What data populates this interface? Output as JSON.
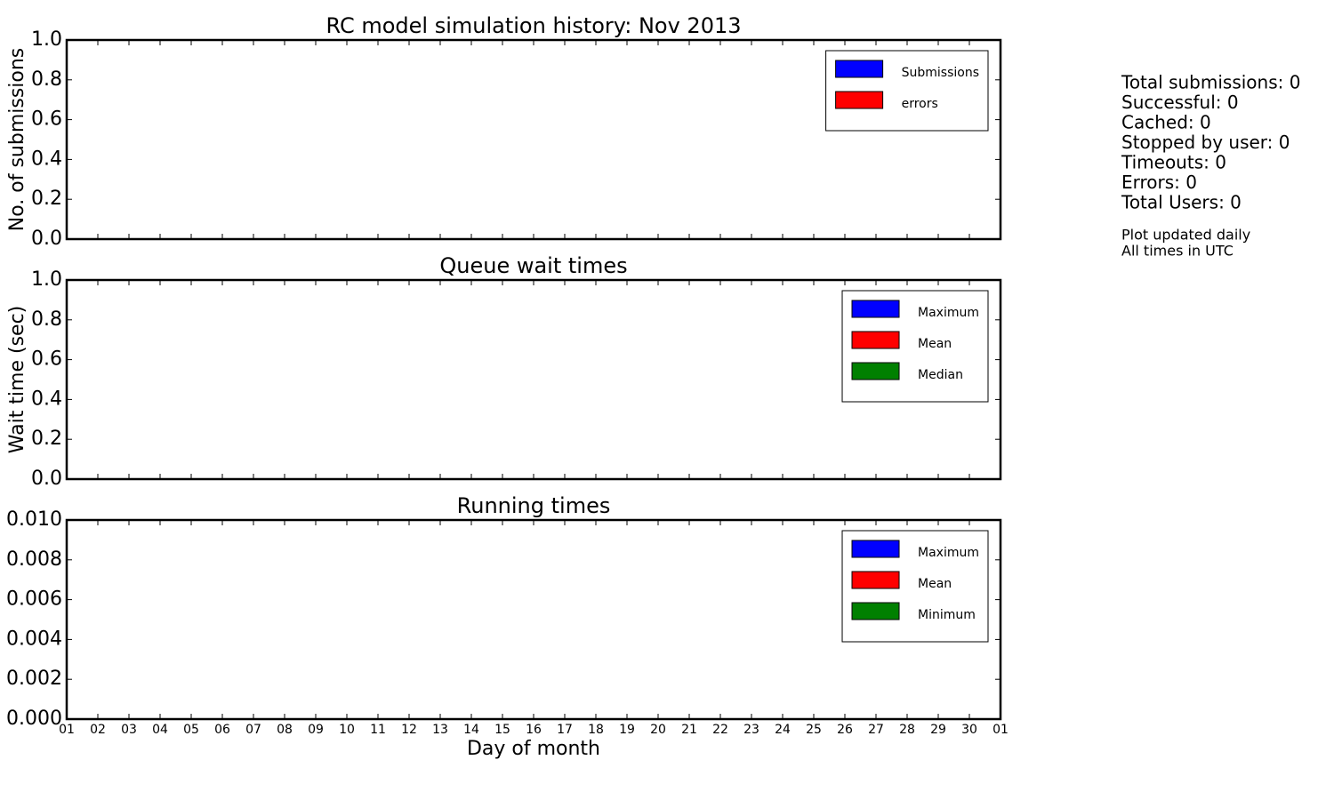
{
  "chart_data": [
    {
      "type": "bar",
      "title": "RC model simulation history: Nov 2013",
      "ylabel": "No. of submissions",
      "series": [
        {
          "name": "Submissions",
          "color": "#0000ff"
        },
        {
          "name": "errors",
          "color": "#ff0000"
        }
      ],
      "ylim": [
        0,
        1
      ],
      "yticks": [
        {
          "value": 0,
          "label": "0.0"
        },
        0.2,
        0.4,
        0.6,
        0.8,
        {
          "value": 1,
          "label": "1.0"
        }
      ],
      "legend": "upper right"
    },
    {
      "type": "bar",
      "title": "Queue wait times",
      "ylabel": "Wait time (sec)",
      "series": [
        {
          "name": "Maximum",
          "color": "#0000ff"
        },
        {
          "name": "Mean",
          "color": "#ff0000"
        },
        {
          "name": "Median",
          "color": "#008000"
        }
      ],
      "ylim": [
        0,
        1
      ],
      "yticks": [
        {
          "value": 0,
          "label": "0.0"
        },
        0.2,
        0.4,
        0.6,
        0.8,
        {
          "value": 1,
          "label": "1.0"
        }
      ],
      "legend": "upper right"
    },
    {
      "type": "bar",
      "title": "Running times",
      "xlabel": "Day of month",
      "series": [
        {
          "name": "Maximum",
          "color": "#0000ff"
        },
        {
          "name": "Mean",
          "color": "#ff0000"
        },
        {
          "name": "Minimum",
          "color": "#008000"
        }
      ],
      "ylim": [
        0,
        0.01
      ],
      "yticks": [
        {
          "value": 0,
          "label": "0.000"
        },
        {
          "value": 0.002,
          "label": "0.002"
        },
        {
          "value": 0.004,
          "label": "0.004"
        },
        {
          "value": 0.006,
          "label": "0.006"
        },
        {
          "value": 0.008,
          "label": "0.008"
        },
        {
          "value": 0.01,
          "label": "0.010"
        }
      ],
      "xlim": [
        1,
        31
      ],
      "xticks": [
        {
          "value": 1,
          "label": "01"
        },
        {
          "value": 2,
          "label": "02"
        },
        {
          "value": 3,
          "label": "03"
        },
        {
          "value": 4,
          "label": "04"
        },
        {
          "value": 5,
          "label": "05"
        },
        {
          "value": 6,
          "label": "06"
        },
        {
          "value": 7,
          "label": "07"
        },
        {
          "value": 8,
          "label": "08"
        },
        {
          "value": 9,
          "label": "09"
        },
        10,
        11,
        12,
        13,
        14,
        15,
        16,
        17,
        18,
        19,
        20,
        21,
        22,
        23,
        24,
        25,
        26,
        27,
        28,
        29,
        30,
        {
          "value": 31,
          "label": "01"
        }
      ],
      "legend": "upper right"
    }
  ],
  "stats": [
    "Total submissions: 0",
    "Successful: 0",
    "Cached: 0",
    "Stopped by user: 0",
    "Timeouts: 0",
    "Errors: 0",
    "Total Users: 0"
  ],
  "notes": [
    "Plot updated daily",
    "All times in UTC"
  ]
}
